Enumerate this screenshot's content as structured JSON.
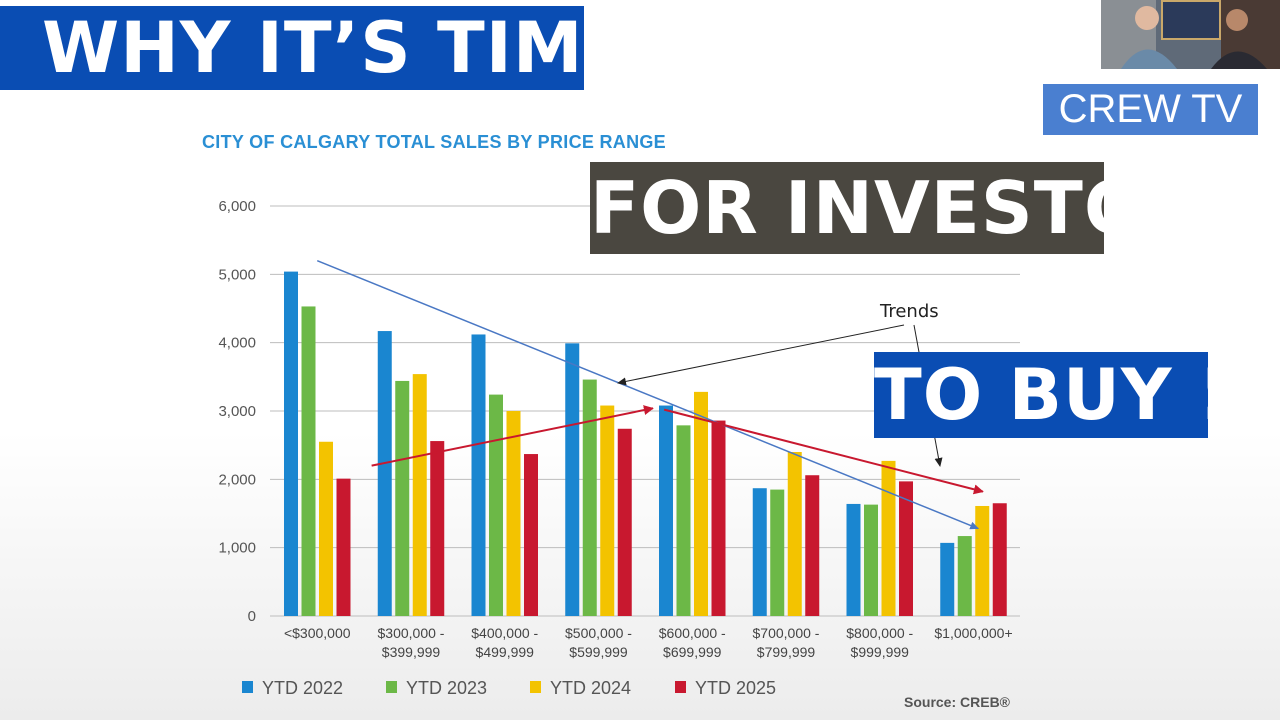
{
  "banners": {
    "top": "WHY IT’S TIME",
    "middle": "FOR INVESTORS",
    "bottom": "TO BUY !!!",
    "channel": "CREW TV"
  },
  "chart_data": {
    "type": "bar",
    "title": "CITY OF CALGARY TOTAL SALES BY PRICE RANGE",
    "categories": [
      [
        "<$300,000"
      ],
      [
        "$300,000 -",
        "$399,999"
      ],
      [
        "$400,000 -",
        "$499,999"
      ],
      [
        "$500,000 -",
        "$599,999"
      ],
      [
        "$600,000 -",
        "$699,999"
      ],
      [
        "$700,000 -",
        "$799,999"
      ],
      [
        "$800,000 -",
        "$999,999"
      ],
      [
        "$1,000,000+"
      ]
    ],
    "series": [
      {
        "name": "YTD 2022",
        "color": "#1a86d0",
        "values": [
          5040,
          4170,
          4120,
          3990,
          3080,
          1870,
          1640,
          1070
        ]
      },
      {
        "name": "YTD 2023",
        "color": "#6cb847",
        "values": [
          4530,
          3440,
          3240,
          3460,
          2790,
          1850,
          1630,
          1170
        ]
      },
      {
        "name": "YTD 2024",
        "color": "#f3c300",
        "values": [
          2550,
          3540,
          3000,
          3080,
          3280,
          2400,
          2270,
          1610
        ]
      },
      {
        "name": "YTD 2025",
        "color": "#c8182f",
        "values": [
          2010,
          2560,
          2370,
          2740,
          2860,
          2060,
          1970,
          1650
        ]
      }
    ],
    "ylim": [
      0,
      6000
    ],
    "yticks": [
      "0",
      "1,000",
      "2,000",
      "3,000",
      "4,000",
      "5,000",
      "6,000"
    ],
    "ytick_values": [
      0,
      1000,
      2000,
      3000,
      4000,
      5000,
      6000
    ],
    "grid": true,
    "legend": "bottom",
    "source": "Source: CREB®",
    "annotations": {
      "label": "Trends",
      "trend_lines": [
        {
          "color": "#4a78c4",
          "from": [
            0,
            5200
          ],
          "to": [
            7.05,
            1280
          ]
        },
        {
          "color": "#c8182f",
          "from": [
            0.58,
            2200
          ],
          "to": [
            3.58,
            3040
          ]
        },
        {
          "color": "#c8182f",
          "from": [
            3.7,
            3020
          ],
          "to": [
            7.1,
            1820
          ]
        }
      ]
    }
  }
}
